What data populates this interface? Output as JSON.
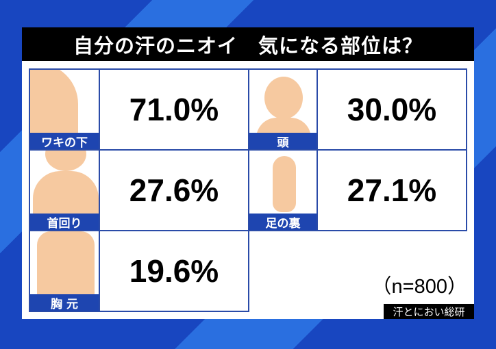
{
  "title": "自分の汗のニオイ　気になる部位は？",
  "chart_data": {
    "type": "table",
    "title": "自分の汗のニオイ　気になる部位は？",
    "categories": [
      "ワキの下",
      "頭",
      "首回り",
      "足の裏",
      "胸 元"
    ],
    "values": [
      "71.0%",
      "30.0%",
      "27.6%",
      "27.1%",
      "19.6%"
    ],
    "sample": "（n=800）",
    "source": "汗とにおい総研"
  },
  "colors": {
    "background": "#1846c0",
    "label_bar": "#1e45b0",
    "skin": "#f6c9a0"
  }
}
